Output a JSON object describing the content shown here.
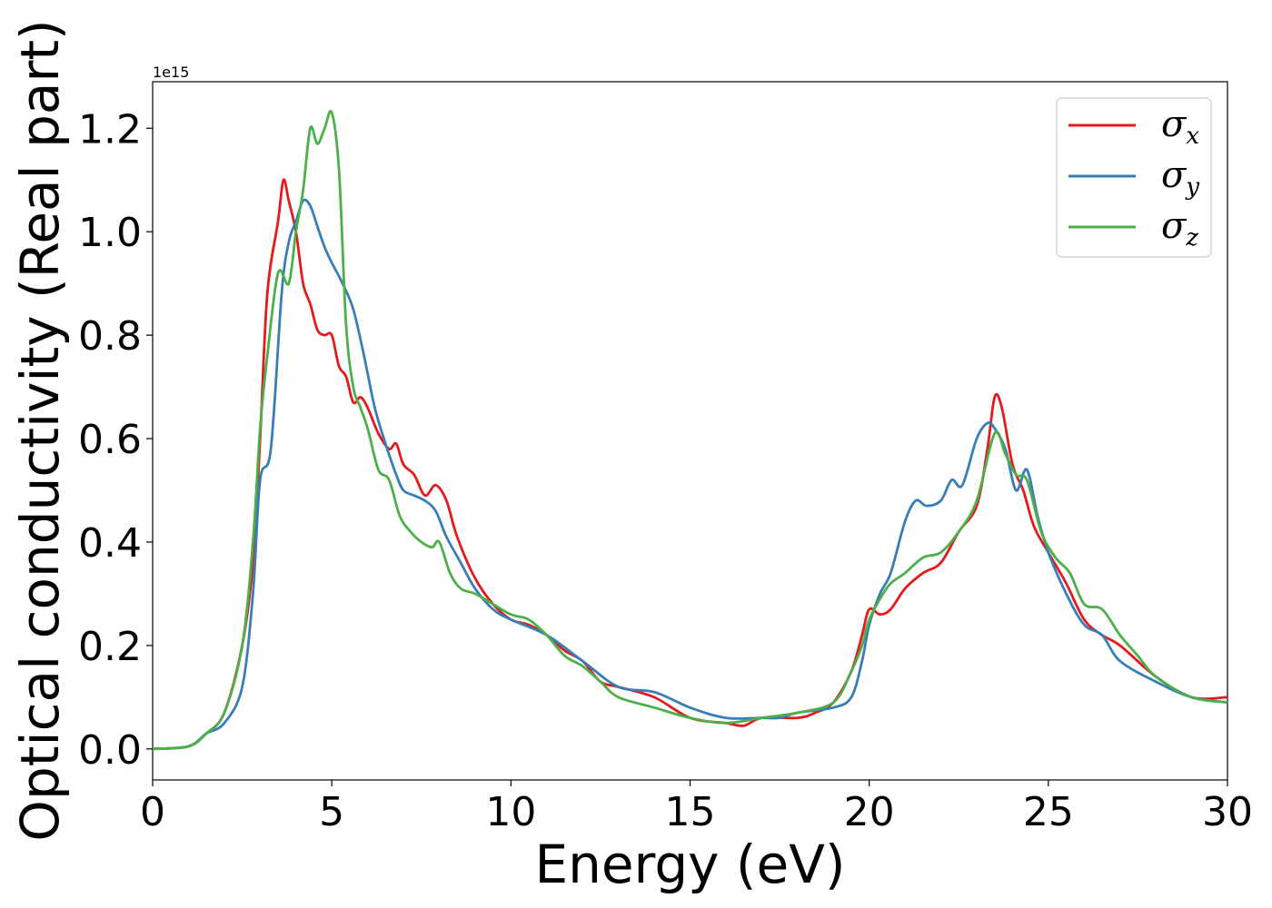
{
  "chart_data": {
    "type": "line",
    "title": "",
    "xlabel": "Energy (eV)",
    "ylabel": "Optical conductivity (Real part)",
    "y_offset_label": "1e15",
    "xlim": [
      0,
      30
    ],
    "ylim": [
      -0.06,
      1.29
    ],
    "xticks": [
      0,
      5,
      10,
      15,
      20,
      25,
      30
    ],
    "xtick_labels": [
      "0",
      "5",
      "10",
      "15",
      "20",
      "25",
      "30"
    ],
    "yticks": [
      0.0,
      0.2,
      0.4,
      0.6,
      0.8,
      1.0,
      1.2
    ],
    "ytick_labels": [
      "0.0",
      "0.2",
      "0.4",
      "0.6",
      "0.8",
      "1.0",
      "1.2"
    ],
    "grid": false,
    "legend_position": "top-right",
    "series": [
      {
        "name": "σx",
        "legend_symbol": "σ",
        "legend_subscript": "x",
        "color": "#e41a1c",
        "x": [
          0,
          1,
          1.5,
          2,
          2.5,
          2.8,
          3.0,
          3.2,
          3.5,
          3.65,
          3.8,
          4.0,
          4.2,
          4.4,
          4.6,
          4.8,
          5.0,
          5.2,
          5.4,
          5.6,
          5.8,
          6.0,
          6.3,
          6.6,
          6.8,
          7.0,
          7.3,
          7.6,
          7.9,
          8.2,
          8.5,
          9.0,
          9.5,
          10.0,
          10.5,
          11.0,
          11.5,
          12.0,
          12.5,
          13.0,
          14.0,
          15.0,
          16.0,
          16.5,
          17.0,
          18.0,
          18.5,
          19.0,
          19.5,
          19.8,
          20.0,
          20.3,
          20.6,
          21.0,
          21.5,
          22.0,
          22.5,
          23.0,
          23.3,
          23.5,
          23.7,
          24.0,
          24.3,
          24.6,
          25.0,
          25.5,
          26.0,
          26.5,
          27.0,
          28.0,
          29.0,
          30.0
        ],
        "values": [
          0.0,
          0.005,
          0.03,
          0.07,
          0.2,
          0.36,
          0.6,
          0.88,
          1.02,
          1.1,
          1.06,
          1.0,
          0.9,
          0.86,
          0.81,
          0.8,
          0.8,
          0.74,
          0.72,
          0.67,
          0.68,
          0.66,
          0.61,
          0.58,
          0.59,
          0.55,
          0.53,
          0.49,
          0.51,
          0.48,
          0.41,
          0.33,
          0.28,
          0.25,
          0.24,
          0.22,
          0.19,
          0.17,
          0.13,
          0.12,
          0.1,
          0.06,
          0.05,
          0.045,
          0.06,
          0.06,
          0.07,
          0.09,
          0.15,
          0.22,
          0.27,
          0.26,
          0.27,
          0.31,
          0.34,
          0.36,
          0.42,
          0.47,
          0.58,
          0.68,
          0.66,
          0.55,
          0.5,
          0.43,
          0.38,
          0.32,
          0.25,
          0.22,
          0.2,
          0.14,
          0.1,
          0.1
        ]
      },
      {
        "name": "σy",
        "legend_symbol": "σ",
        "legend_subscript": "y",
        "color": "#377eb8",
        "x": [
          0,
          1,
          1.5,
          2,
          2.5,
          2.8,
          3.0,
          3.3,
          3.6,
          3.8,
          4.0,
          4.2,
          4.4,
          4.6,
          4.8,
          5.0,
          5.3,
          5.6,
          5.9,
          6.2,
          6.5,
          6.8,
          7.0,
          7.3,
          7.6,
          7.9,
          8.2,
          8.6,
          9.0,
          9.5,
          10.0,
          11.0,
          12.0,
          13.0,
          14.0,
          15.0,
          16.0,
          17.0,
          17.5,
          18.0,
          19.0,
          19.5,
          19.8,
          20.0,
          20.3,
          20.6,
          21.0,
          21.3,
          21.6,
          22.0,
          22.3,
          22.6,
          23.0,
          23.3,
          23.5,
          23.8,
          24.1,
          24.4,
          24.7,
          25.0,
          25.5,
          26.0,
          26.5,
          27.0,
          28.0,
          29.0,
          30.0
        ],
        "values": [
          0.0,
          0.005,
          0.03,
          0.05,
          0.12,
          0.3,
          0.52,
          0.58,
          0.88,
          0.98,
          1.02,
          1.06,
          1.05,
          1.01,
          0.97,
          0.94,
          0.9,
          0.85,
          0.76,
          0.66,
          0.59,
          0.53,
          0.5,
          0.49,
          0.48,
          0.46,
          0.41,
          0.36,
          0.31,
          0.27,
          0.25,
          0.22,
          0.17,
          0.12,
          0.11,
          0.08,
          0.06,
          0.06,
          0.06,
          0.07,
          0.08,
          0.1,
          0.17,
          0.24,
          0.3,
          0.34,
          0.44,
          0.48,
          0.47,
          0.48,
          0.52,
          0.51,
          0.6,
          0.63,
          0.62,
          0.58,
          0.5,
          0.54,
          0.45,
          0.38,
          0.3,
          0.24,
          0.22,
          0.17,
          0.13,
          0.1,
          0.09
        ]
      },
      {
        "name": "σz",
        "legend_symbol": "σ",
        "legend_subscript": "z",
        "color": "#4daf4a",
        "x": [
          0,
          1,
          1.5,
          2,
          2.5,
          2.8,
          3.0,
          3.2,
          3.5,
          3.8,
          4.0,
          4.2,
          4.4,
          4.6,
          4.8,
          5.0,
          5.2,
          5.4,
          5.6,
          5.8,
          6.0,
          6.3,
          6.6,
          6.9,
          7.2,
          7.5,
          7.8,
          8.0,
          8.3,
          8.6,
          9.0,
          9.5,
          10.0,
          10.5,
          11.0,
          11.5,
          12.0,
          12.5,
          13.0,
          14.0,
          15.0,
          16.0,
          17.0,
          18.0,
          19.0,
          19.5,
          19.8,
          20.0,
          20.3,
          20.6,
          21.0,
          21.5,
          22.0,
          22.5,
          23.0,
          23.5,
          23.8,
          24.1,
          24.4,
          24.8,
          25.2,
          25.6,
          26.0,
          26.5,
          27.0,
          27.5,
          28.0,
          29.0,
          30.0
        ],
        "values": [
          0.0,
          0.005,
          0.03,
          0.07,
          0.2,
          0.4,
          0.62,
          0.76,
          0.92,
          0.9,
          1.0,
          1.08,
          1.2,
          1.17,
          1.2,
          1.23,
          1.12,
          0.82,
          0.7,
          0.66,
          0.62,
          0.54,
          0.52,
          0.45,
          0.42,
          0.4,
          0.39,
          0.4,
          0.34,
          0.31,
          0.3,
          0.28,
          0.26,
          0.25,
          0.22,
          0.18,
          0.16,
          0.13,
          0.1,
          0.08,
          0.06,
          0.05,
          0.06,
          0.07,
          0.09,
          0.15,
          0.2,
          0.25,
          0.29,
          0.32,
          0.34,
          0.37,
          0.38,
          0.42,
          0.48,
          0.61,
          0.57,
          0.53,
          0.52,
          0.42,
          0.37,
          0.34,
          0.28,
          0.27,
          0.22,
          0.18,
          0.14,
          0.1,
          0.09
        ]
      }
    ]
  }
}
